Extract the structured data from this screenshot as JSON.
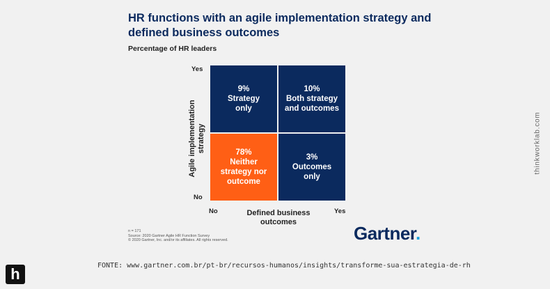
{
  "title": "HR functions with an agile implementation strategy and defined business outcomes",
  "subtitle": "Percentage of HR leaders",
  "chart_data": {
    "type": "table",
    "title": "HR functions with an agile implementation strategy and defined business outcomes",
    "subtitle": "Percentage of HR leaders",
    "ylabel": "Agile implementation strategy",
    "xlabel": "Defined business outcomes",
    "y_ticks": [
      "Yes",
      "No"
    ],
    "x_ticks": [
      "No",
      "Yes"
    ],
    "cells": [
      {
        "row": "Yes",
        "col": "No",
        "value": 9,
        "value_label": "9%",
        "label": "Strategy\nonly",
        "color": "#0b2a5e"
      },
      {
        "row": "Yes",
        "col": "Yes",
        "value": 10,
        "value_label": "10%",
        "label": "Both strategy\nand outcomes",
        "color": "#0b2a5e"
      },
      {
        "row": "No",
        "col": "No",
        "value": 78,
        "value_label": "78%",
        "label": "Neither\nstrategy nor\noutcome",
        "color": "#ff5f15"
      },
      {
        "row": "No",
        "col": "Yes",
        "value": 3,
        "value_label": "3%",
        "label": "Outcomes\nonly",
        "color": "#0b2a5e"
      }
    ]
  },
  "footnote": {
    "n": "n = 171",
    "source": "Source: 2020 Gartner Agile HR Function Survey",
    "copyright": "© 2020 Gartner, Inc. and/or its affiliates. All rights reserved."
  },
  "brand": {
    "name": "Gartner",
    "dot": "."
  },
  "side_text": "thinkworklab.com",
  "source_line": "FONTE: www.gartner.com.br/pt-br/recursos-humanos/insights/transforme-sua-estrategia-de-rh",
  "logo_letter": "h"
}
